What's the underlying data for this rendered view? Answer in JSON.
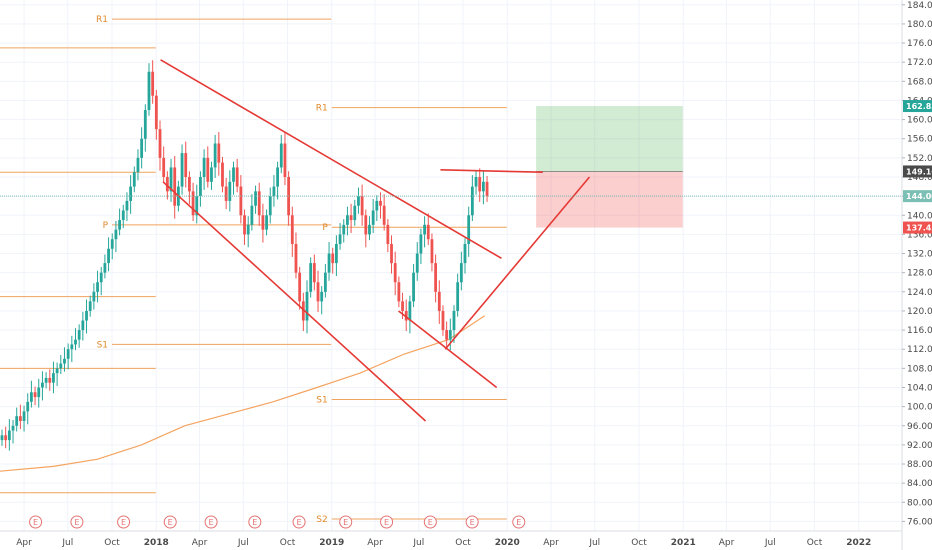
{
  "chart_data": {
    "type": "candlestick",
    "price_scale": {
      "min": 74,
      "max": 185,
      "ticks": [
        "76.00",
        "80.00",
        "84.00",
        "88.00",
        "92.00",
        "96.00",
        "100.00",
        "104.00",
        "108.00",
        "112.00",
        "116.00",
        "120.00",
        "124.00",
        "128.00",
        "132.00",
        "136.00",
        "140.00",
        "144.00",
        "148.00",
        "152.00",
        "156.00",
        "160.00",
        "164.00",
        "168.00",
        "172.00",
        "176.00",
        "180.00",
        "184.00"
      ]
    },
    "time_scale": {
      "start": "2017-02-10",
      "end": "2022-04-01",
      "labels": [
        {
          "date": "2017-04-01",
          "label": "Apr"
        },
        {
          "date": "2017-07-01",
          "label": "Jul"
        },
        {
          "date": "2017-10-01",
          "label": "Oct"
        },
        {
          "date": "2018-01-01",
          "label": "2018"
        },
        {
          "date": "2018-04-01",
          "label": "Apr"
        },
        {
          "date": "2018-07-01",
          "label": "Jul"
        },
        {
          "date": "2018-10-01",
          "label": "Oct"
        },
        {
          "date": "2019-01-01",
          "label": "2019"
        },
        {
          "date": "2019-04-01",
          "label": "Apr"
        },
        {
          "date": "2019-07-01",
          "label": "Jul"
        },
        {
          "date": "2019-10-01",
          "label": "Oct"
        },
        {
          "date": "2020-01-01",
          "label": "2020"
        },
        {
          "date": "2020-04-01",
          "label": "Apr"
        },
        {
          "date": "2020-07-01",
          "label": "Jul"
        },
        {
          "date": "2020-10-01",
          "label": "Oct"
        },
        {
          "date": "2021-01-01",
          "label": "2021"
        },
        {
          "date": "2021-04-01",
          "label": "Apr"
        },
        {
          "date": "2021-07-01",
          "label": "Jul"
        },
        {
          "date": "2021-10-01",
          "label": "Oct"
        },
        {
          "date": "2022-01-01",
          "label": "2022"
        }
      ]
    },
    "candles_interval": "weekly",
    "closes": [
      94,
      93,
      95,
      96,
      98,
      97,
      99,
      101,
      103,
      102,
      104,
      105,
      106,
      105,
      107,
      108,
      109,
      110,
      112,
      113,
      114,
      116,
      118,
      120,
      122,
      124,
      126,
      128,
      130,
      133,
      135,
      137,
      139,
      141,
      143,
      146,
      149,
      152,
      156,
      162,
      170,
      165,
      158,
      152,
      148,
      145,
      150,
      142,
      146,
      153,
      148,
      145,
      140,
      144,
      148,
      152,
      147,
      150,
      155,
      151,
      146,
      143,
      147,
      150,
      146,
      140,
      136,
      138,
      142,
      145,
      140,
      137,
      140,
      144,
      146,
      150,
      155,
      148,
      140,
      134,
      128,
      122,
      118,
      124,
      130,
      126,
      122,
      124,
      128,
      132,
      130,
      134,
      136,
      138,
      140,
      139,
      142,
      144,
      140,
      136,
      138,
      141,
      143,
      142,
      138,
      134,
      130,
      126,
      122,
      120,
      118,
      122,
      128,
      132,
      136,
      138,
      135,
      130,
      124,
      120,
      116,
      114,
      116,
      120,
      126,
      130,
      134,
      140,
      146,
      148,
      145,
      147,
      144
    ],
    "current_price": "144.00",
    "price_badges": [
      {
        "value": "162.83",
        "color": "#26a69a"
      },
      {
        "value": "149.16",
        "color": "#4a4a4a"
      },
      {
        "value": "144.00",
        "color": "#7cbfb4"
      },
      {
        "value": "137.43",
        "color": "#ef5350"
      }
    ],
    "pivot_levels": [
      {
        "label": "R1",
        "value": 181,
        "from": "2017-10-01",
        "to": "2018-12-31"
      },
      {
        "label": "",
        "value": 175,
        "from": "2017-02-10",
        "to": "2017-12-31"
      },
      {
        "label": "",
        "value": 149,
        "from": "2017-02-10",
        "to": "2017-12-31"
      },
      {
        "label": "P",
        "value": 138,
        "from": "2017-10-01",
        "to": "2018-12-31"
      },
      {
        "label": "",
        "value": 123,
        "from": "2017-02-10",
        "to": "2017-12-31"
      },
      {
        "label": "S1",
        "value": 113,
        "from": "2017-10-01",
        "to": "2018-12-31"
      },
      {
        "label": "",
        "value": 108,
        "from": "2017-02-10",
        "to": "2017-12-31"
      },
      {
        "label": "",
        "value": 82,
        "from": "2017-02-10",
        "to": "2017-12-31"
      },
      {
        "label": "R1",
        "value": 162.5,
        "from": "2019-01-01",
        "to": "2019-12-31"
      },
      {
        "label": "P",
        "value": 137.5,
        "from": "2019-01-01",
        "to": "2019-12-31"
      },
      {
        "label": "S1",
        "value": 101.5,
        "from": "2019-01-01",
        "to": "2019-12-31"
      },
      {
        "label": "S2",
        "value": 76.5,
        "from": "2019-01-01",
        "to": "2019-12-31"
      }
    ],
    "moving_average": [
      {
        "date": "2017-02-10",
        "value": 86.5
      },
      {
        "date": "2017-06-01",
        "value": 87.5
      },
      {
        "date": "2017-09-01",
        "value": 89
      },
      {
        "date": "2017-12-01",
        "value": 92
      },
      {
        "date": "2018-03-01",
        "value": 96
      },
      {
        "date": "2018-06-01",
        "value": 98.5
      },
      {
        "date": "2018-09-01",
        "value": 101
      },
      {
        "date": "2018-12-01",
        "value": 104
      },
      {
        "date": "2019-03-01",
        "value": 107
      },
      {
        "date": "2019-06-01",
        "value": 111
      },
      {
        "date": "2019-09-01",
        "value": 114
      },
      {
        "date": "2019-11-15",
        "value": 119
      }
    ],
    "trendlines": [
      {
        "from": {
          "date": "2018-01-10",
          "value": 172.5
        },
        "to": {
          "date": "2019-12-20",
          "value": 131
        }
      },
      {
        "from": {
          "date": "2018-01-15",
          "value": 147
        },
        "to": {
          "date": "2019-07-15",
          "value": 97
        }
      },
      {
        "from": {
          "date": "2019-05-20",
          "value": 120
        },
        "to": {
          "date": "2019-12-10",
          "value": 104
        }
      },
      {
        "from": {
          "date": "2019-08-25",
          "value": 112
        },
        "to": {
          "date": "2020-06-20",
          "value": 148
        }
      },
      {
        "from": {
          "date": "2019-08-15",
          "value": 149.5
        },
        "to": {
          "date": "2020-03-15",
          "value": 149
        }
      }
    ],
    "position_tool": {
      "from": "2020-03-01",
      "to": "2020-12-31",
      "target": 162.83,
      "entry": 149.16,
      "stop": 137.43
    },
    "earnings_markers": [
      "2017-04-25",
      "2017-07-20",
      "2017-10-25",
      "2018-01-30",
      "2018-04-25",
      "2018-07-25",
      "2018-10-25",
      "2019-01-30",
      "2019-04-25",
      "2019-07-25",
      "2019-10-20",
      "2020-01-25"
    ],
    "event_marker_label": "E"
  }
}
